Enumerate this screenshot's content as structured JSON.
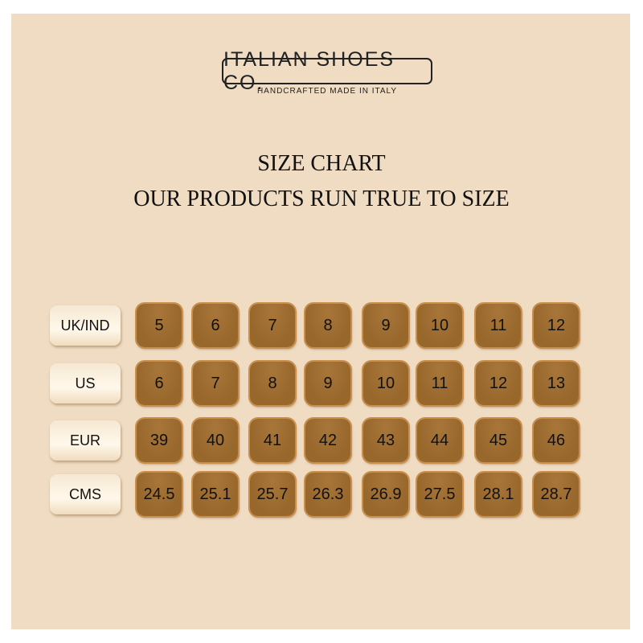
{
  "brand": {
    "name": "ITALIAN SHOES CO.",
    "tagline": "HANDCRAFTED MADE IN ITALY"
  },
  "title": "SIZE CHART",
  "subtitle": "OUR PRODUCTS RUN TRUE TO SIZE",
  "colors": {
    "background": "#efdcc3",
    "cell": "#98672c",
    "label": "#fff8ea"
  },
  "rows": [
    {
      "label": "UK/IND",
      "values": [
        "5",
        "6",
        "7",
        "8",
        "9",
        "10",
        "11",
        "12"
      ]
    },
    {
      "label": "US",
      "values": [
        "6",
        "7",
        "8",
        "9",
        "10",
        "11",
        "12",
        "13"
      ]
    },
    {
      "label": "EUR",
      "values": [
        "39",
        "40",
        "41",
        "42",
        "43",
        "44",
        "45",
        "46"
      ]
    },
    {
      "label": "CMS",
      "values": [
        "24.5",
        "25.1",
        "25.7",
        "26.3",
        "26.9",
        "27.5",
        "28.1",
        "28.7"
      ]
    }
  ]
}
